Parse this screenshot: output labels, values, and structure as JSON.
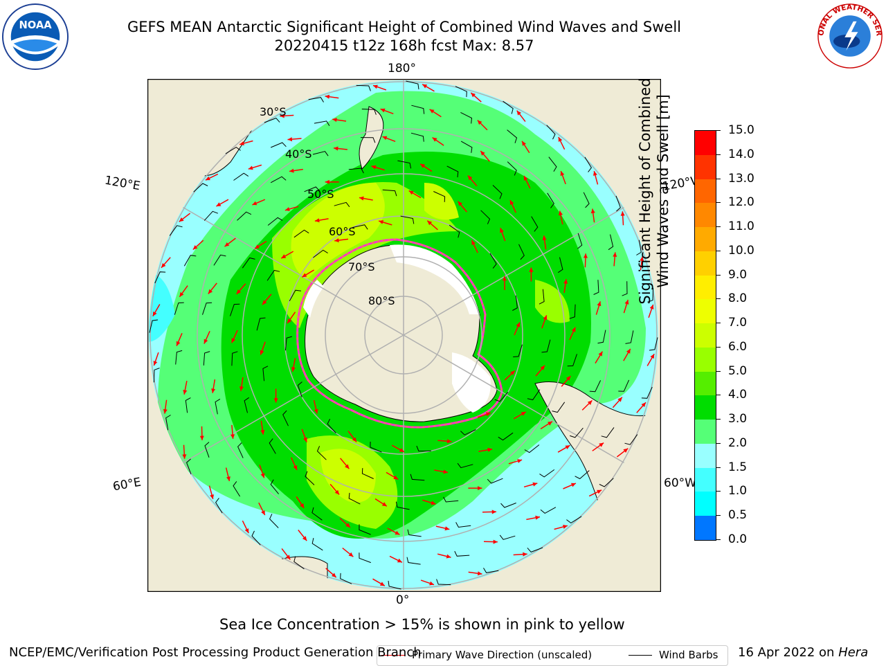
{
  "title": {
    "line1": "GEFS MEAN Antarctic Significant Height of Combined Wind Waves and Swell",
    "line2": "20220415 t12z 168h fcst   Max: 8.57"
  },
  "logos": {
    "left": "noaa-logo",
    "right": "national-weather-service-logo",
    "left_text": "NOAA",
    "right_text": "NATIONAL WEATHER SERVICE"
  },
  "map": {
    "projection": "south-polar-stereographic",
    "longitude_labels": {
      "top": "180°",
      "bottom": "0°",
      "left_upper": "120°E",
      "right_upper": "120°W",
      "left_lower": "60°E",
      "right_lower": "60°W"
    },
    "latitude_labels": [
      "30°S",
      "40°S",
      "50°S",
      "60°S",
      "70°S",
      "80°S"
    ],
    "colors": {
      "land": "#efebd6",
      "ice_shelf": "#ffffff",
      "sea_ice_edge": "#ff33cc",
      "wave_arrow": "#ff0000",
      "wind_barb": "#000000",
      "graticule": "#b0b0b0"
    }
  },
  "legend": {
    "wave_direction": "Primary Wave Direction (unscaled)",
    "wind_barbs": "Wind Barbs"
  },
  "colorbar": {
    "title_line1": "Significant Height of Combined",
    "title_line2": "Wind Waves and Swell [m]",
    "ticks": [
      "15.0",
      "14.0",
      "13.0",
      "12.0",
      "11.0",
      "10.0",
      "9.0",
      "8.0",
      "7.0",
      "6.0",
      "5.0",
      "4.0",
      "3.0",
      "2.0",
      "1.5",
      "1.0",
      "0.5",
      "0.0"
    ],
    "colors": [
      "#ff0000",
      "#ff3300",
      "#ff6600",
      "#ff8800",
      "#ffaa00",
      "#ffd000",
      "#ffee00",
      "#eeff00",
      "#ccff00",
      "#99ff00",
      "#55ee00",
      "#00dd00",
      "#55ff77",
      "#99ffff",
      "#44ffff",
      "#00ffff",
      "#0077ff",
      "#0000ff"
    ]
  },
  "note": "Sea Ice Concentration > 15% is shown in pink to yellow",
  "footer": {
    "left": "NCEP/EMC/Verification Post Processing Product Generation Branch",
    "right_prefix": "16 Apr 2022 on",
    "right_machine": "Hera"
  }
}
